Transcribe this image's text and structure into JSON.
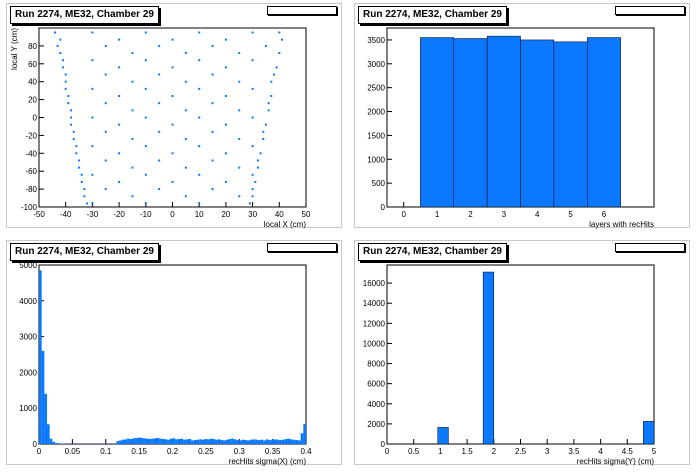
{
  "chart_data": [
    {
      "type": "scatter",
      "title": "Run 2274, ME32, Chamber 29",
      "xlabel": "local X (cm)",
      "ylabel": "local Y (cm)",
      "xlim": [
        -50,
        50
      ],
      "ylim": [
        -100,
        100
      ],
      "xticks": [
        -50,
        -40,
        -30,
        -20,
        -10,
        0,
        10,
        20,
        30,
        40,
        50
      ],
      "yticks": [
        -100,
        -80,
        -60,
        -40,
        -20,
        0,
        20,
        40,
        60,
        80
      ],
      "points": [
        [
          -44,
          95
        ],
        [
          -30,
          95
        ],
        [
          -10,
          95
        ],
        [
          10,
          95
        ],
        [
          30,
          95
        ],
        [
          40,
          95
        ],
        [
          -42,
          87
        ],
        [
          -20,
          87
        ],
        [
          0,
          87
        ],
        [
          20,
          87
        ],
        [
          41,
          87
        ],
        [
          -43,
          80
        ],
        [
          -25,
          80
        ],
        [
          -5,
          80
        ],
        [
          15,
          80
        ],
        [
          35,
          80
        ],
        [
          -42,
          72
        ],
        [
          -15,
          72
        ],
        [
          5,
          72
        ],
        [
          25,
          72
        ],
        [
          40,
          72
        ],
        [
          -41,
          64
        ],
        [
          -30,
          64
        ],
        [
          -10,
          64
        ],
        [
          10,
          64
        ],
        [
          30,
          64
        ],
        [
          -41,
          56
        ],
        [
          -20,
          56
        ],
        [
          0,
          56
        ],
        [
          20,
          56
        ],
        [
          39,
          56
        ],
        [
          -40,
          48
        ],
        [
          -25,
          48
        ],
        [
          -5,
          48
        ],
        [
          15,
          48
        ],
        [
          38,
          48
        ],
        [
          -40,
          40
        ],
        [
          -15,
          40
        ],
        [
          5,
          40
        ],
        [
          25,
          40
        ],
        [
          37,
          40
        ],
        [
          -40,
          32
        ],
        [
          -30,
          32
        ],
        [
          -10,
          32
        ],
        [
          10,
          32
        ],
        [
          30,
          32
        ],
        [
          -39,
          24
        ],
        [
          -20,
          24
        ],
        [
          0,
          24
        ],
        [
          20,
          24
        ],
        [
          37,
          24
        ],
        [
          -39,
          16
        ],
        [
          -25,
          16
        ],
        [
          -5,
          16
        ],
        [
          15,
          16
        ],
        [
          36,
          16
        ],
        [
          -38,
          8
        ],
        [
          -15,
          8
        ],
        [
          5,
          8
        ],
        [
          25,
          8
        ],
        [
          36,
          8
        ],
        [
          -38,
          0
        ],
        [
          -30,
          0
        ],
        [
          -10,
          0
        ],
        [
          10,
          0
        ],
        [
          30,
          0
        ],
        [
          -38,
          -8
        ],
        [
          -20,
          -8
        ],
        [
          0,
          -8
        ],
        [
          20,
          -8
        ],
        [
          35,
          -8
        ],
        [
          -37,
          -16
        ],
        [
          -25,
          -16
        ],
        [
          -5,
          -16
        ],
        [
          15,
          -16
        ],
        [
          34,
          -16
        ],
        [
          -37,
          -24
        ],
        [
          -15,
          -24
        ],
        [
          5,
          -24
        ],
        [
          25,
          -24
        ],
        [
          34,
          -24
        ],
        [
          -36,
          -32
        ],
        [
          -30,
          -32
        ],
        [
          -10,
          -32
        ],
        [
          10,
          -32
        ],
        [
          30,
          -32
        ],
        [
          -36,
          -40
        ],
        [
          -20,
          -40
        ],
        [
          0,
          -40
        ],
        [
          20,
          -40
        ],
        [
          33,
          -40
        ],
        [
          -35,
          -48
        ],
        [
          -25,
          -48
        ],
        [
          -5,
          -48
        ],
        [
          15,
          -48
        ],
        [
          32,
          -48
        ],
        [
          -35,
          -56
        ],
        [
          -15,
          -56
        ],
        [
          5,
          -56
        ],
        [
          25,
          -56
        ],
        [
          32,
          -56
        ],
        [
          -34,
          -64
        ],
        [
          -30,
          -64
        ],
        [
          -10,
          -64
        ],
        [
          10,
          -64
        ],
        [
          30,
          -64
        ],
        [
          -34,
          -72
        ],
        [
          -20,
          -72
        ],
        [
          0,
          -72
        ],
        [
          20,
          -72
        ],
        [
          31,
          -72
        ],
        [
          -33,
          -80
        ],
        [
          -25,
          -80
        ],
        [
          -5,
          -80
        ],
        [
          15,
          -80
        ],
        [
          30,
          -80
        ],
        [
          -33,
          -88
        ],
        [
          -15,
          -88
        ],
        [
          5,
          -88
        ],
        [
          25,
          -88
        ],
        [
          30,
          -88
        ],
        [
          -32,
          -96
        ],
        [
          -30,
          -96
        ],
        [
          -10,
          -96
        ],
        [
          10,
          -96
        ],
        [
          29,
          -96
        ]
      ]
    },
    {
      "type": "bar",
      "title": "Run 2274, ME32, Chamber 29",
      "xlabel": "layers with recHits",
      "ylabel": "",
      "xlim": [
        -0.5,
        7.5
      ],
      "ylim": [
        0,
        3750
      ],
      "xticks": [
        0,
        1,
        2,
        3,
        4,
        5,
        6
      ],
      "yticks": [
        0,
        500,
        1000,
        1500,
        2000,
        2500,
        3000,
        3500
      ],
      "categories": [
        "1",
        "2",
        "3",
        "4",
        "5",
        "6"
      ],
      "values": [
        3550,
        3530,
        3580,
        3500,
        3460,
        3550
      ]
    },
    {
      "type": "bar",
      "title": "Run 2274, ME32, Chamber 29",
      "xlabel": "recHits sigma(X) (cm)",
      "ylabel": "",
      "xlim": [
        0,
        0.4
      ],
      "ylim": [
        0,
        5000
      ],
      "xticks": [
        0,
        0.05,
        0.1,
        0.15,
        0.2,
        0.25,
        0.3,
        0.35,
        0.4
      ],
      "yticks": [
        0,
        1000,
        2000,
        3000,
        4000,
        5000
      ],
      "bin_width": 0.004,
      "values": [
        4850,
        2600,
        1400,
        550,
        150,
        60,
        30,
        20,
        10,
        10,
        5,
        5,
        5,
        5,
        5,
        5,
        5,
        5,
        5,
        5,
        5,
        5,
        5,
        5,
        5,
        5,
        5,
        5,
        5,
        80,
        100,
        120,
        130,
        150,
        140,
        160,
        170,
        180,
        170,
        160,
        150,
        140,
        150,
        160,
        170,
        150,
        140,
        130,
        120,
        150,
        160,
        130,
        140,
        150,
        120,
        130,
        140,
        100,
        110,
        120,
        130,
        120,
        140,
        130,
        150,
        140,
        120,
        130,
        110,
        100,
        120,
        140,
        150,
        130,
        110,
        100,
        120,
        110,
        100,
        120,
        130,
        120,
        110,
        120,
        100,
        130,
        110,
        120,
        130,
        120,
        110,
        120,
        140,
        150,
        130,
        120,
        110,
        100,
        300,
        560
      ]
    },
    {
      "type": "bar",
      "title": "Run 2274, ME32, Chamber 29",
      "xlabel": "recHits sigma(Y) (cm)",
      "ylabel": "",
      "xlim": [
        0,
        5
      ],
      "ylim": [
        0,
        17800
      ],
      "xticks": [
        0,
        0.5,
        1,
        1.5,
        2,
        2.5,
        3,
        3.5,
        4,
        4.5,
        5
      ],
      "yticks": [
        0,
        2000,
        4000,
        6000,
        8000,
        10000,
        12000,
        14000,
        16000
      ],
      "bins": [
        {
          "from": 0.95,
          "to": 1.15,
          "value": 1650
        },
        {
          "from": 1.8,
          "to": 2.0,
          "value": 17100
        },
        {
          "from": 4.8,
          "to": 5.0,
          "value": 2250
        }
      ]
    }
  ]
}
